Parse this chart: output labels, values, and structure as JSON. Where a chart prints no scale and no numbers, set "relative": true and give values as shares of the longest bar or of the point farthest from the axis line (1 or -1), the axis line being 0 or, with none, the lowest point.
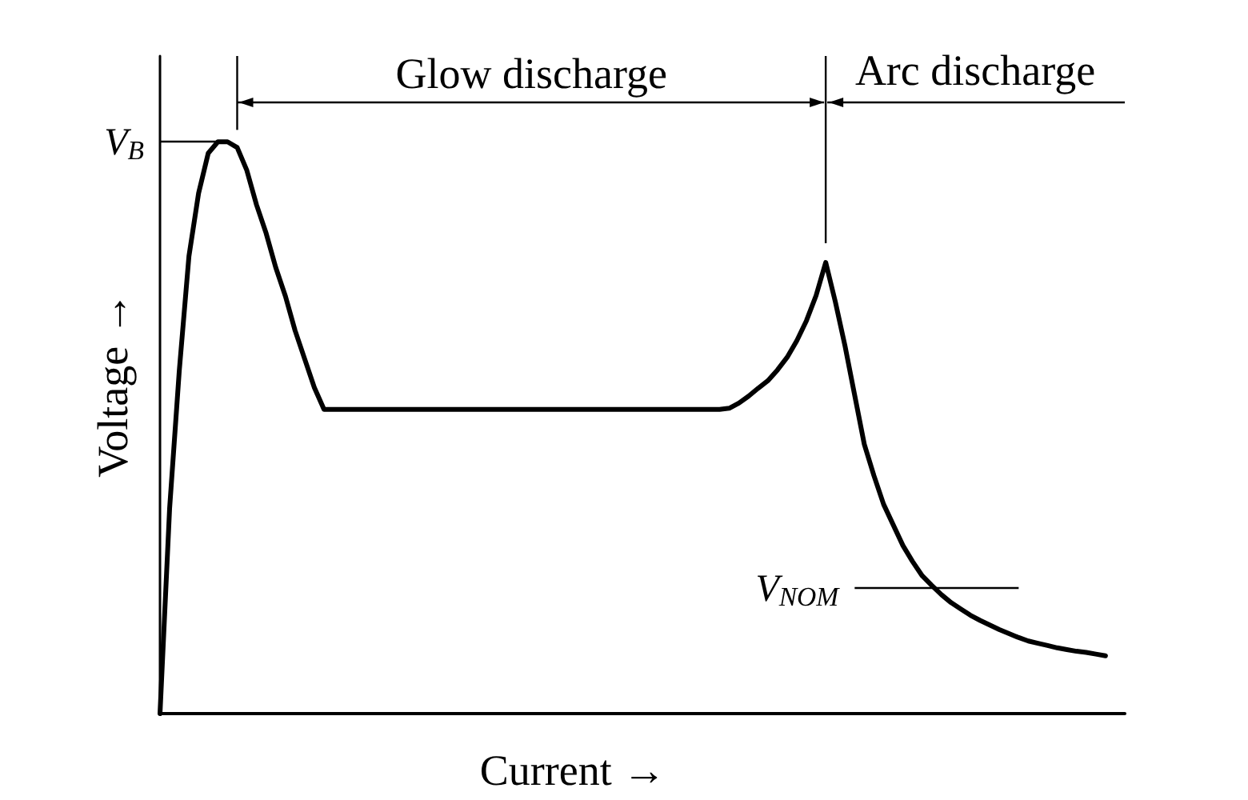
{
  "chart_data": {
    "type": "line",
    "relative": true,
    "xlabel": "Current →",
    "ylabel": "Voltage →",
    "marker": "none",
    "color": "#000000",
    "annotations": [
      "Glow discharge",
      "Arc discharge"
    ],
    "ref_lines": [
      {
        "axis": "y",
        "value": 1,
        "label": "V$_{B}$"
      },
      {
        "axis": "y",
        "value": 0.22,
        "label": "V$_{NOM}$"
      }
    ],
    "categories": [
      null,
      null,
      null,
      null,
      null,
      null,
      null,
      null,
      null,
      null,
      null,
      null,
      null,
      null,
      null,
      null,
      null,
      null,
      null,
      null,
      null,
      null,
      null,
      null,
      null,
      null,
      null,
      null,
      null,
      null,
      null,
      null,
      null,
      null,
      null,
      null,
      null,
      null,
      null,
      null,
      null,
      null,
      null,
      null,
      null,
      null,
      null,
      null,
      null,
      null,
      null,
      null,
      null,
      null,
      null,
      null,
      null,
      null,
      null,
      null,
      null,
      null,
      null,
      null,
      null,
      null,
      null,
      null,
      null,
      null,
      null,
      null,
      null,
      null,
      null,
      null,
      null,
      null,
      null,
      null,
      null,
      null,
      null,
      null,
      null,
      null,
      null,
      null,
      null,
      null,
      null,
      null,
      null,
      null,
      null,
      null,
      null,
      null,
      null,
      null,
      null
    ],
    "values": [
      0,
      0.36,
      0.6,
      0.8,
      0.91,
      0.98,
      1,
      1,
      0.99,
      0.95,
      0.89,
      0.84,
      0.78,
      0.73,
      0.67,
      0.62,
      0.57,
      0.532,
      0.532,
      0.532,
      0.532,
      0.532,
      0.532,
      0.532,
      0.532,
      0.532,
      0.532,
      0.532,
      0.532,
      0.532,
      0.532,
      0.532,
      0.532,
      0.532,
      0.532,
      0.532,
      0.532,
      0.532,
      0.532,
      0.532,
      0.532,
      0.532,
      0.532,
      0.532,
      0.532,
      0.532,
      0.532,
      0.532,
      0.532,
      0.532,
      0.532,
      0.532,
      0.532,
      0.532,
      0.532,
      0.532,
      0.532,
      0.532,
      0.532,
      0.534,
      0.543,
      0.555,
      0.569,
      0.582,
      0.601,
      0.623,
      0.652,
      0.687,
      0.731,
      0.789,
      0.72,
      0.643,
      0.557,
      0.471,
      0.416,
      0.366,
      0.33,
      0.294,
      0.266,
      0.241,
      0.224,
      0.208,
      0.194,
      0.183,
      0.172,
      0.163,
      0.155,
      0.147,
      0.14,
      0.133,
      0.127,
      0.123,
      0.119,
      0.115,
      0.112,
      0.109,
      0.107,
      0.104,
      0.101,
      null,
      null
    ]
  }
}
